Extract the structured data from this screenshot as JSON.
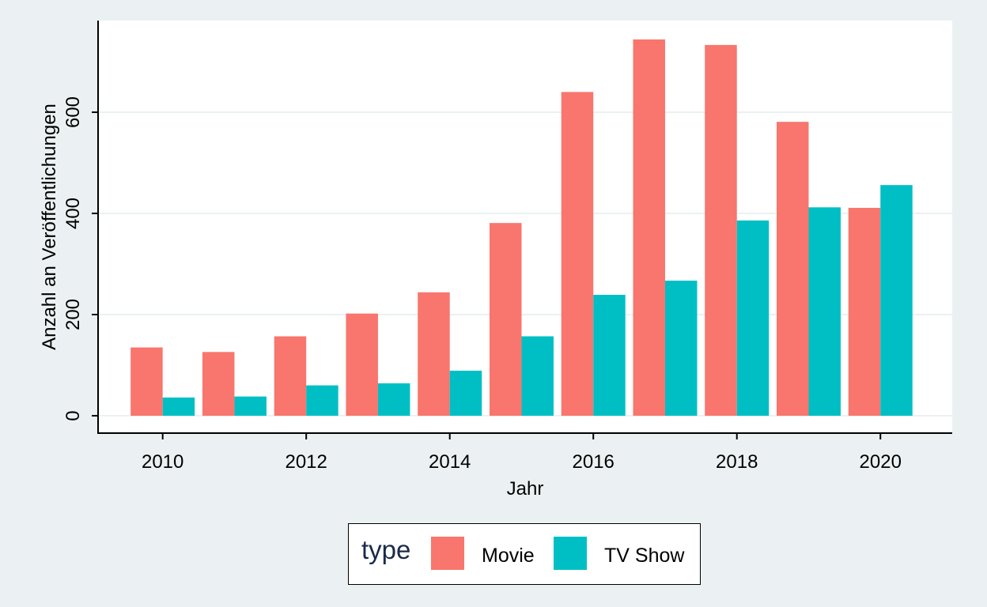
{
  "colors": {
    "background": "#EBF1F2",
    "panel": "#FFFFFF",
    "grid": "#EBF1F2",
    "movie": "#F8766D",
    "tvshow": "#00BFC4"
  },
  "chart_data": {
    "type": "bar",
    "xlabel": "Jahr",
    "ylabel": "Anzahl an Veröffentlichungen",
    "x": [
      2010,
      2011,
      2012,
      2013,
      2014,
      2015,
      2016,
      2017,
      2018,
      2019,
      2020
    ],
    "x_ticks": [
      2010,
      2012,
      2014,
      2016,
      2018,
      2020
    ],
    "xlim": [
      2009.1,
      2021.0
    ],
    "y_ticks": [
      0,
      200,
      400,
      600
    ],
    "ylim": [
      0,
      755
    ],
    "grid": "horizontal",
    "series": [
      {
        "name": "Movie",
        "color": "#F8766D",
        "values": [
          135,
          126,
          157,
          202,
          244,
          381,
          640,
          744,
          733,
          581,
          411
        ]
      },
      {
        "name": "TV Show",
        "color": "#00BFC4",
        "values": [
          36,
          38,
          60,
          64,
          89,
          157,
          239,
          267,
          386,
          412,
          456
        ]
      }
    ],
    "legend": {
      "title": "type",
      "position": "bottom",
      "entries": [
        "Movie",
        "TV Show"
      ]
    }
  }
}
